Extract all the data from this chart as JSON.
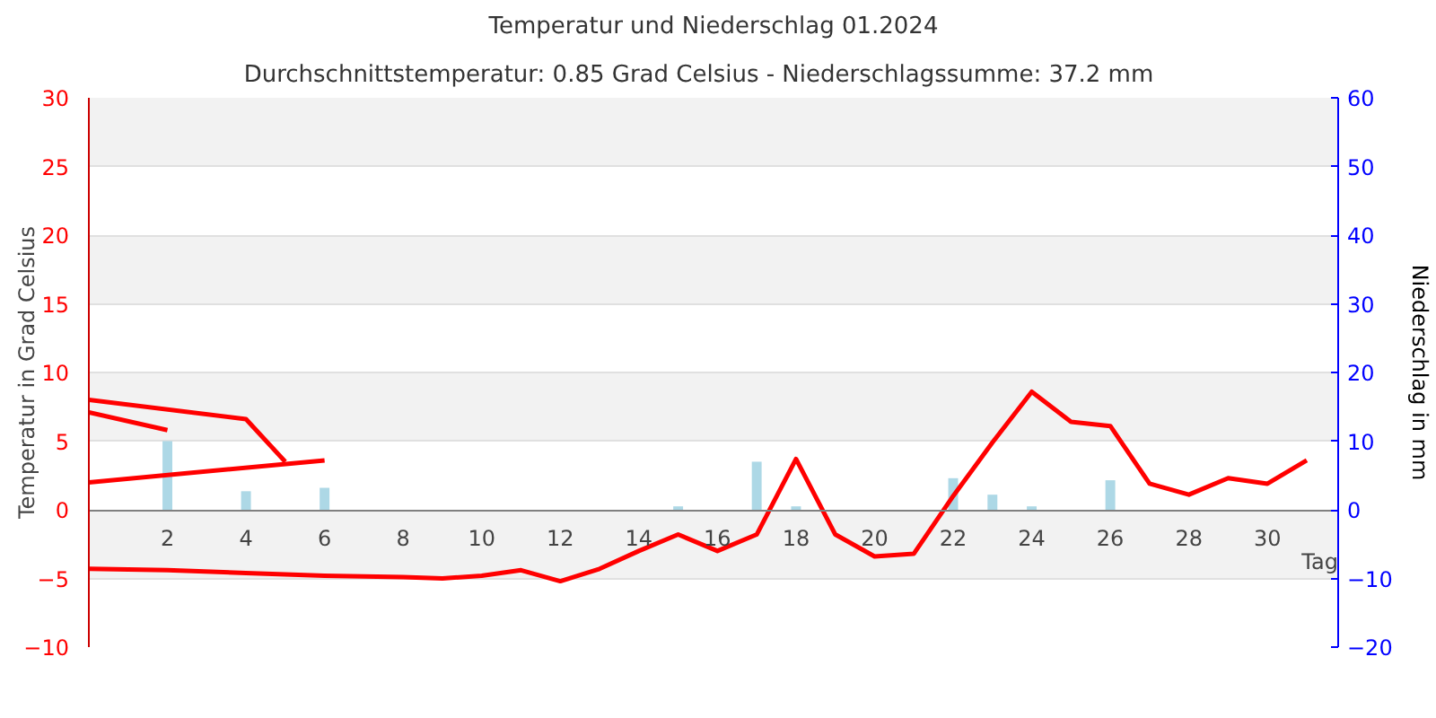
{
  "chart_data": {
    "type": "line",
    "title": "Temperatur und Niederschlag 01.2024",
    "subtitle": "Durchschnittstemperatur: 0.85 Grad Celsius   -   Niederschlagssumme: 37.2 mm",
    "xlabel": "Tag",
    "ylabel": "Temperatur in Grad Celsius",
    "y2label": "Niederschlag in mm",
    "xlim": [
      0,
      31.8
    ],
    "xticks": [
      2,
      4,
      6,
      8,
      10,
      12,
      14,
      16,
      18,
      20,
      22,
      24,
      26,
      28,
      30
    ],
    "ylim": [
      -10,
      30
    ],
    "yticks": [
      -10,
      -5,
      0,
      5,
      10,
      15,
      20,
      25,
      30
    ],
    "y2lim": [
      -20,
      60
    ],
    "y2ticks": [
      -20,
      -10,
      0,
      10,
      20,
      30,
      40,
      50,
      60
    ],
    "grid": "y",
    "series": [
      {
        "type": "bar",
        "axis": "y2",
        "color": "#add8e6",
        "x": [
          2,
          4,
          6,
          15,
          17,
          18,
          22,
          23,
          24,
          26
        ],
        "values": [
          10,
          2.7,
          3.2,
          0.5,
          7.0,
          0.5,
          4.6,
          2.2,
          0.5,
          4.3
        ]
      },
      {
        "color": "#ff0000",
        "x": [
          0,
          2
        ],
        "values": [
          7.1,
          5.8
        ]
      },
      {
        "color": "#ff0000",
        "x": [
          0,
          4,
          5
        ],
        "values": [
          8.0,
          6.6,
          3.5
        ]
      },
      {
        "color": "#ff0000",
        "x": [
          0,
          6
        ],
        "values": [
          2.0,
          3.6
        ]
      },
      {
        "color": "#ff0000",
        "x": [
          0,
          2,
          4,
          6,
          8,
          9,
          10,
          11,
          12,
          13,
          14,
          15,
          16,
          17,
          18,
          19,
          20,
          21,
          22,
          23,
          24,
          25,
          26,
          27,
          28,
          29,
          30,
          31
        ],
        "values": [
          -4.3,
          -4.4,
          -4.6,
          -4.8,
          -4.9,
          -5.0,
          -4.8,
          -4.4,
          -5.2,
          -4.3,
          -3.0,
          -1.8,
          -3.0,
          -1.8,
          3.7,
          -1.8,
          -3.4,
          -3.2,
          1.0,
          4.9,
          8.6,
          6.4,
          6.1,
          1.9,
          1.1,
          2.3,
          1.9,
          3.6
        ]
      }
    ]
  }
}
